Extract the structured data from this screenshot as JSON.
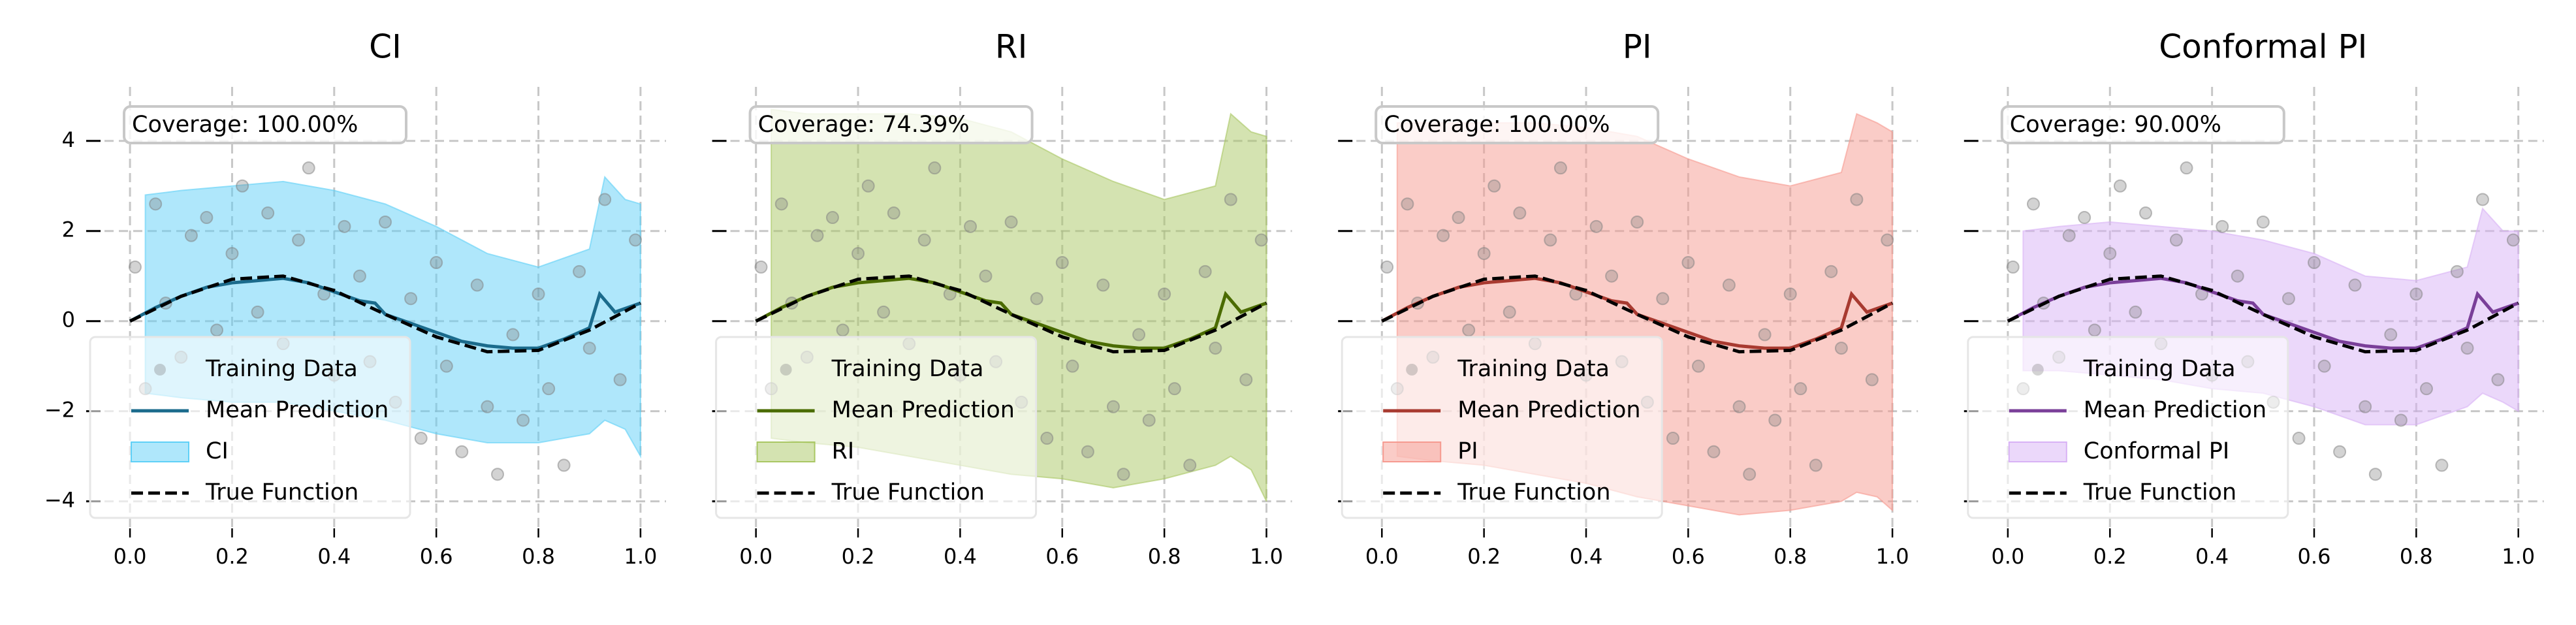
{
  "chart_data": [
    {
      "type": "line",
      "title": "CI",
      "annotation": "Coverage: 100.00%",
      "legend": "lower left",
      "grid": true,
      "xlim": [
        -0.05,
        1.05
      ],
      "ylim": [
        -4.6,
        5.2
      ],
      "xticks": [
        {
          "value": 0,
          "label": "0.0"
        },
        0.2,
        0.4,
        0.6,
        0.8,
        {
          "value": 1,
          "label": "1.0"
        }
      ],
      "yticks": [
        {
          "value": -4,
          "label": "−4"
        },
        {
          "value": -2,
          "label": "−2"
        },
        0,
        2,
        4
      ],
      "series": [
        {
          "name": "Training Data",
          "kind": "scatter",
          "color": "#808080",
          "x": [
            0.01,
            0.03,
            0.05,
            0.07,
            0.1,
            0.12,
            0.15,
            0.17,
            0.2,
            0.22,
            0.25,
            0.27,
            0.3,
            0.33,
            0.35,
            0.38,
            0.4,
            0.42,
            0.45,
            0.47,
            0.5,
            0.52,
            0.55,
            0.57,
            0.6,
            0.62,
            0.65,
            0.68,
            0.7,
            0.72,
            0.75,
            0.77,
            0.8,
            0.82,
            0.85,
            0.88,
            0.9,
            0.93,
            0.96,
            0.99
          ],
          "values": [
            1.2,
            -1.5,
            2.6,
            0.4,
            -0.8,
            1.9,
            2.3,
            -0.2,
            1.5,
            3.0,
            0.2,
            2.4,
            -0.5,
            1.8,
            3.4,
            0.6,
            -1.2,
            2.1,
            1.0,
            -0.9,
            2.2,
            -1.8,
            0.5,
            -2.6,
            1.3,
            -1.0,
            -2.9,
            0.8,
            -1.9,
            -3.4,
            -0.3,
            -2.2,
            0.6,
            -1.5,
            -3.2,
            1.1,
            -0.6,
            2.7,
            -1.3,
            1.8
          ]
        },
        {
          "name": "Mean Prediction",
          "kind": "line",
          "color": "#1b6b8c",
          "x": [
            0,
            0.05,
            0.1,
            0.15,
            0.2,
            0.25,
            0.3,
            0.35,
            0.4,
            0.45,
            0.48,
            0.5,
            0.55,
            0.6,
            0.65,
            0.7,
            0.75,
            0.8,
            0.85,
            0.9,
            0.92,
            0.95,
            1.0
          ],
          "values": [
            0.0,
            0.3,
            0.55,
            0.75,
            0.85,
            0.9,
            0.95,
            0.85,
            0.65,
            0.45,
            0.4,
            0.15,
            -0.05,
            -0.25,
            -0.45,
            -0.55,
            -0.6,
            -0.6,
            -0.4,
            -0.15,
            0.6,
            0.2,
            0.4
          ]
        },
        {
          "name": "CI",
          "kind": "band",
          "color": "#5fd0f7",
          "x": [
            0.03,
            0.1,
            0.2,
            0.3,
            0.4,
            0.5,
            0.6,
            0.7,
            0.8,
            0.9,
            0.93,
            0.97,
            1.0
          ],
          "upper": [
            2.8,
            2.9,
            3.0,
            3.1,
            2.9,
            2.6,
            2.1,
            1.5,
            1.2,
            1.6,
            3.2,
            2.7,
            2.6
          ],
          "lower": [
            -1.6,
            -1.7,
            -1.8,
            -1.8,
            -2.0,
            -2.2,
            -2.5,
            -2.7,
            -2.7,
            -2.5,
            -2.2,
            -2.4,
            -3.0
          ]
        },
        {
          "name": "True Function",
          "kind": "dashed",
          "color": "#000000",
          "x": [
            0,
            0.1,
            0.2,
            0.3,
            0.4,
            0.5,
            0.6,
            0.7,
            0.8,
            0.9,
            1.0
          ],
          "values": [
            0,
            0.55,
            0.93,
            1.0,
            0.68,
            0.15,
            -0.35,
            -0.68,
            -0.65,
            -0.2,
            0.4
          ]
        }
      ]
    },
    {
      "type": "line",
      "title": "RI",
      "annotation": "Coverage: 74.39%",
      "legend": "lower left",
      "grid": true,
      "xlim": [
        -0.05,
        1.05
      ],
      "ylim": [
        -4.6,
        5.2
      ],
      "xticks": [
        {
          "value": 0,
          "label": "0.0"
        },
        0.2,
        0.4,
        0.6,
        0.8,
        {
          "value": 1,
          "label": "1.0"
        }
      ],
      "yticks": [
        -4,
        -2,
        0,
        2,
        4
      ],
      "series": [
        {
          "name": "Training Data",
          "kind": "scatter",
          "color": "#808080",
          "x": [
            0.01,
            0.03,
            0.05,
            0.07,
            0.1,
            0.12,
            0.15,
            0.17,
            0.2,
            0.22,
            0.25,
            0.27,
            0.3,
            0.33,
            0.35,
            0.38,
            0.4,
            0.42,
            0.45,
            0.47,
            0.5,
            0.52,
            0.55,
            0.57,
            0.6,
            0.62,
            0.65,
            0.68,
            0.7,
            0.72,
            0.75,
            0.77,
            0.8,
            0.82,
            0.85,
            0.88,
            0.9,
            0.93,
            0.96,
            0.99
          ],
          "values": [
            1.2,
            -1.5,
            2.6,
            0.4,
            -0.8,
            1.9,
            2.3,
            -0.2,
            1.5,
            3.0,
            0.2,
            2.4,
            -0.5,
            1.8,
            3.4,
            0.6,
            -1.2,
            2.1,
            1.0,
            -0.9,
            2.2,
            -1.8,
            0.5,
            -2.6,
            1.3,
            -1.0,
            -2.9,
            0.8,
            -1.9,
            -3.4,
            -0.3,
            -2.2,
            0.6,
            -1.5,
            -3.2,
            1.1,
            -0.6,
            2.7,
            -1.3,
            1.8
          ]
        },
        {
          "name": "Mean Prediction",
          "kind": "line",
          "color": "#4a6b00",
          "x": [
            0,
            0.05,
            0.1,
            0.15,
            0.2,
            0.25,
            0.3,
            0.35,
            0.4,
            0.45,
            0.48,
            0.5,
            0.55,
            0.6,
            0.65,
            0.7,
            0.75,
            0.8,
            0.85,
            0.9,
            0.92,
            0.95,
            1.0
          ],
          "values": [
            0.0,
            0.3,
            0.55,
            0.75,
            0.85,
            0.9,
            0.95,
            0.85,
            0.65,
            0.45,
            0.4,
            0.15,
            -0.05,
            -0.25,
            -0.45,
            -0.55,
            -0.6,
            -0.6,
            -0.4,
            -0.15,
            0.6,
            0.2,
            0.4
          ]
        },
        {
          "name": "RI",
          "kind": "band",
          "color": "#a9c763",
          "x": [
            0.03,
            0.1,
            0.2,
            0.3,
            0.4,
            0.5,
            0.6,
            0.7,
            0.8,
            0.9,
            0.93,
            0.97,
            1.0
          ],
          "upper": [
            4.7,
            4.6,
            4.6,
            4.6,
            4.5,
            4.2,
            3.6,
            3.1,
            2.7,
            3.0,
            4.6,
            4.2,
            4.1
          ],
          "lower": [
            -2.6,
            -2.7,
            -2.8,
            -3.0,
            -3.2,
            -3.4,
            -3.5,
            -3.7,
            -3.5,
            -3.2,
            -3.0,
            -3.3,
            -4.0
          ]
        },
        {
          "name": "True Function",
          "kind": "dashed",
          "color": "#000000",
          "x": [
            0,
            0.1,
            0.2,
            0.3,
            0.4,
            0.5,
            0.6,
            0.7,
            0.8,
            0.9,
            1.0
          ],
          "values": [
            0,
            0.55,
            0.93,
            1.0,
            0.68,
            0.15,
            -0.35,
            -0.68,
            -0.65,
            -0.2,
            0.4
          ]
        }
      ]
    },
    {
      "type": "line",
      "title": "PI",
      "annotation": "Coverage: 100.00%",
      "legend": "lower left",
      "grid": true,
      "xlim": [
        -0.05,
        1.05
      ],
      "ylim": [
        -4.6,
        5.2
      ],
      "xticks": [
        {
          "value": 0,
          "label": "0.0"
        },
        0.2,
        0.4,
        0.6,
        0.8,
        {
          "value": 1,
          "label": "1.0"
        }
      ],
      "yticks": [
        -4,
        -2,
        0,
        2,
        4
      ],
      "series": [
        {
          "name": "Training Data",
          "kind": "scatter",
          "color": "#808080",
          "x": [
            0.01,
            0.03,
            0.05,
            0.07,
            0.1,
            0.12,
            0.15,
            0.17,
            0.2,
            0.22,
            0.25,
            0.27,
            0.3,
            0.33,
            0.35,
            0.38,
            0.4,
            0.42,
            0.45,
            0.47,
            0.5,
            0.52,
            0.55,
            0.57,
            0.6,
            0.62,
            0.65,
            0.68,
            0.7,
            0.72,
            0.75,
            0.77,
            0.8,
            0.82,
            0.85,
            0.88,
            0.9,
            0.93,
            0.96,
            0.99
          ],
          "values": [
            1.2,
            -1.5,
            2.6,
            0.4,
            -0.8,
            1.9,
            2.3,
            -0.2,
            1.5,
            3.0,
            0.2,
            2.4,
            -0.5,
            1.8,
            3.4,
            0.6,
            -1.2,
            2.1,
            1.0,
            -0.9,
            2.2,
            -1.8,
            0.5,
            -2.6,
            1.3,
            -1.0,
            -2.9,
            0.8,
            -1.9,
            -3.4,
            -0.3,
            -2.2,
            0.6,
            -1.5,
            -3.2,
            1.1,
            -0.6,
            2.7,
            -1.3,
            1.8
          ]
        },
        {
          "name": "Mean Prediction",
          "kind": "line",
          "color": "#a83a30",
          "x": [
            0,
            0.05,
            0.1,
            0.15,
            0.2,
            0.25,
            0.3,
            0.35,
            0.4,
            0.45,
            0.48,
            0.5,
            0.55,
            0.6,
            0.65,
            0.7,
            0.75,
            0.8,
            0.85,
            0.9,
            0.92,
            0.95,
            1.0
          ],
          "values": [
            0.0,
            0.3,
            0.55,
            0.75,
            0.85,
            0.9,
            0.95,
            0.85,
            0.65,
            0.45,
            0.4,
            0.15,
            -0.05,
            -0.25,
            -0.45,
            -0.55,
            -0.6,
            -0.6,
            -0.4,
            -0.15,
            0.6,
            0.2,
            0.4
          ]
        },
        {
          "name": "PI",
          "kind": "band",
          "color": "#f69a90",
          "x": [
            0.03,
            0.1,
            0.2,
            0.3,
            0.4,
            0.5,
            0.6,
            0.7,
            0.8,
            0.9,
            0.93,
            0.97,
            1.0
          ],
          "upper": [
            4.4,
            4.4,
            4.4,
            4.4,
            4.3,
            4.1,
            3.6,
            3.2,
            3.0,
            3.3,
            4.6,
            4.4,
            4.2
          ],
          "lower": [
            -3.0,
            -3.1,
            -3.2,
            -3.4,
            -3.6,
            -3.9,
            -4.1,
            -4.3,
            -4.2,
            -4.0,
            -3.8,
            -3.9,
            -4.2
          ]
        },
        {
          "name": "True Function",
          "kind": "dashed",
          "color": "#000000",
          "x": [
            0,
            0.1,
            0.2,
            0.3,
            0.4,
            0.5,
            0.6,
            0.7,
            0.8,
            0.9,
            1.0
          ],
          "values": [
            0,
            0.55,
            0.93,
            1.0,
            0.68,
            0.15,
            -0.35,
            -0.68,
            -0.65,
            -0.2,
            0.4
          ]
        }
      ]
    },
    {
      "type": "line",
      "title": "Conformal PI",
      "annotation": "Coverage: 90.00%",
      "legend": "lower left",
      "grid": true,
      "xlim": [
        -0.05,
        1.05
      ],
      "ylim": [
        -4.6,
        5.2
      ],
      "xticks": [
        {
          "value": 0,
          "label": "0.0"
        },
        0.2,
        0.4,
        0.6,
        0.8,
        {
          "value": 1,
          "label": "1.0"
        }
      ],
      "yticks": [
        -4,
        -2,
        0,
        2,
        4
      ],
      "series": [
        {
          "name": "Training Data",
          "kind": "scatter",
          "color": "#808080",
          "x": [
            0.01,
            0.03,
            0.05,
            0.07,
            0.1,
            0.12,
            0.15,
            0.17,
            0.2,
            0.22,
            0.25,
            0.27,
            0.3,
            0.33,
            0.35,
            0.38,
            0.4,
            0.42,
            0.45,
            0.47,
            0.5,
            0.52,
            0.55,
            0.57,
            0.6,
            0.62,
            0.65,
            0.68,
            0.7,
            0.72,
            0.75,
            0.77,
            0.8,
            0.82,
            0.85,
            0.88,
            0.9,
            0.93,
            0.96,
            0.99
          ],
          "values": [
            1.2,
            -1.5,
            2.6,
            0.4,
            -0.8,
            1.9,
            2.3,
            -0.2,
            1.5,
            3.0,
            0.2,
            2.4,
            -0.5,
            1.8,
            3.4,
            0.6,
            -1.2,
            2.1,
            1.0,
            -0.9,
            2.2,
            -1.8,
            0.5,
            -2.6,
            1.3,
            -1.0,
            -2.9,
            0.8,
            -1.9,
            -3.4,
            -0.3,
            -2.2,
            0.6,
            -1.5,
            -3.2,
            1.1,
            -0.6,
            2.7,
            -1.3,
            1.8
          ]
        },
        {
          "name": "Mean Prediction",
          "kind": "line",
          "color": "#7a3f99",
          "x": [
            0,
            0.05,
            0.1,
            0.15,
            0.2,
            0.25,
            0.3,
            0.35,
            0.4,
            0.45,
            0.48,
            0.5,
            0.55,
            0.6,
            0.65,
            0.7,
            0.75,
            0.8,
            0.85,
            0.9,
            0.92,
            0.95,
            1.0
          ],
          "values": [
            0.0,
            0.3,
            0.55,
            0.75,
            0.85,
            0.9,
            0.95,
            0.85,
            0.65,
            0.45,
            0.4,
            0.15,
            -0.05,
            -0.25,
            -0.45,
            -0.55,
            -0.6,
            -0.6,
            -0.4,
            -0.15,
            0.6,
            0.2,
            0.4
          ]
        },
        {
          "name": "Conformal PI",
          "kind": "band",
          "color": "#d8b2f5",
          "x": [
            0.03,
            0.1,
            0.2,
            0.3,
            0.4,
            0.5,
            0.6,
            0.7,
            0.8,
            0.9,
            0.93,
            0.97,
            1.0
          ],
          "upper": [
            2.0,
            2.1,
            2.2,
            2.1,
            2.0,
            1.8,
            1.5,
            1.0,
            0.9,
            1.2,
            2.5,
            2.0,
            2.0
          ],
          "lower": [
            -1.1,
            -1.1,
            -1.2,
            -1.3,
            -1.5,
            -1.6,
            -1.9,
            -2.3,
            -2.3,
            -1.9,
            -1.6,
            -1.8,
            -2.0
          ]
        },
        {
          "name": "True Function",
          "kind": "dashed",
          "color": "#000000",
          "x": [
            0,
            0.1,
            0.2,
            0.3,
            0.4,
            0.5,
            0.6,
            0.7,
            0.8,
            0.9,
            1.0
          ],
          "values": [
            0,
            0.55,
            0.93,
            1.0,
            0.68,
            0.15,
            -0.35,
            -0.68,
            -0.65,
            -0.2,
            0.4
          ]
        }
      ]
    }
  ]
}
